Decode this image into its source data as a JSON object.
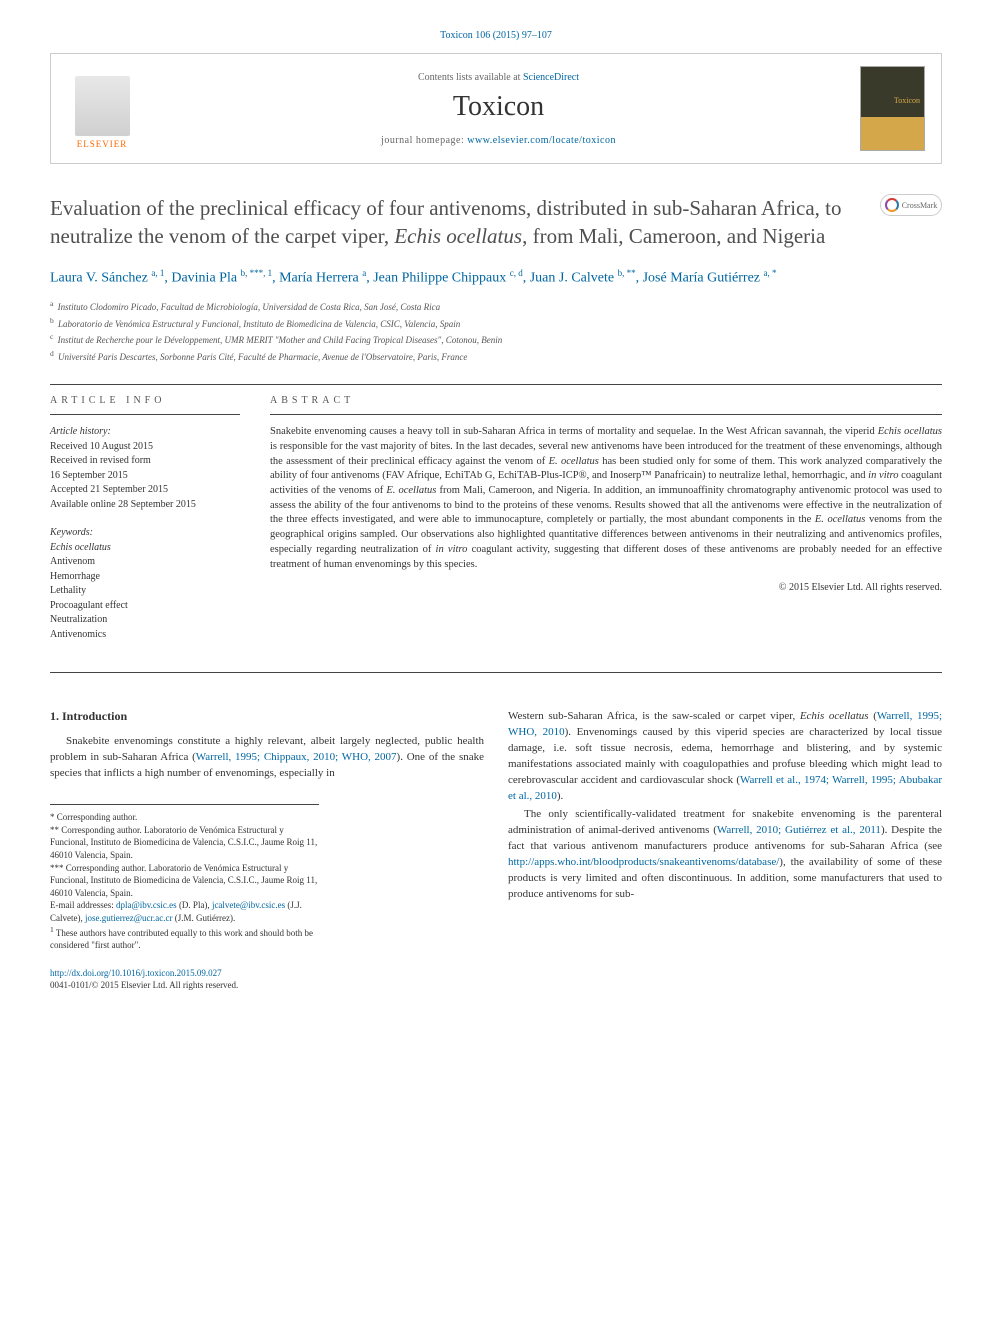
{
  "citation": "Toxicon 106 (2015) 97–107",
  "header": {
    "contents_prefix": "Contents lists available at ",
    "contents_link": "ScienceDirect",
    "journal": "Toxicon",
    "homepage_prefix": "journal homepage: ",
    "homepage_link": "www.elsevier.com/locate/toxicon",
    "elsevier": "ELSEVIER",
    "cover_label": "Toxicon",
    "crossmark": "CrossMark"
  },
  "title_prefix": "Evaluation of the preclinical efficacy of four antivenoms, distributed in sub-Saharan Africa, to neutralize the venom of the carpet viper, ",
  "title_species": "Echis ocellatus",
  "title_suffix": ", from Mali, Cameroon, and Nigeria",
  "authors_html": "Laura V. Sánchez <sup>a, 1</sup>, Davinia Pla <sup>b, ***, 1</sup>, María Herrera <sup>a</sup>, Jean Philippe Chippaux <sup>c, d</sup>, Juan J. Calvete <sup>b, **</sup>, José María Gutiérrez <sup>a, *</sup>",
  "affiliations": [
    {
      "sup": "a",
      "text": "Instituto Clodomiro Picado, Facultad de Microbiología, Universidad de Costa Rica, San José, Costa Rica"
    },
    {
      "sup": "b",
      "text": "Laboratorio de Venómica Estructural y Funcional, Instituto de Biomedicina de Valencia, CSIC, Valencia, Spain"
    },
    {
      "sup": "c",
      "text": "Institut de Recherche pour le Développement, UMR MERIT \"Mother and Child Facing Tropical Diseases\", Cotonou, Benin"
    },
    {
      "sup": "d",
      "text": "Université Paris Descartes, Sorbonne Paris Cité, Faculté de Pharmacie, Avenue de l'Observatoire, Paris, France"
    }
  ],
  "article_info_label": "ARTICLE INFO",
  "abstract_label": "ABSTRACT",
  "history": {
    "label": "Article history:",
    "lines": [
      "Received 10 August 2015",
      "Received in revised form",
      "16 September 2015",
      "Accepted 21 September 2015",
      "Available online 28 September 2015"
    ]
  },
  "keywords": {
    "label": "Keywords:",
    "items": [
      "Echis ocellatus",
      "Antivenom",
      "Hemorrhage",
      "Lethality",
      "Procoagulant effect",
      "Neutralization",
      "Antivenomics"
    ]
  },
  "abstract": "Snakebite envenoming causes a heavy toll in sub-Saharan Africa in terms of mortality and sequelae. In the West African savannah, the viperid <span class=\"em\">Echis ocellatus</span> is responsible for the vast majority of bites. In the last decades, several new antivenoms have been introduced for the treatment of these envenomings, although the assessment of their preclinical efficacy against the venom of <span class=\"em\">E. ocellatus</span> has been studied only for some of them. This work analyzed comparatively the ability of four antivenoms (FAV Afrique, EchiTAb G, EchiTAB-Plus-ICP®, and Inoserp™ Panafricain) to neutralize lethal, hemorrhagic, and <span class=\"em\">in vitro</span> coagulant activities of the venoms of <span class=\"em\">E. ocellatus</span> from Mali, Cameroon, and Nigeria. In addition, an immunoaffinity chromatography antivenomic protocol was used to assess the ability of the four antivenoms to bind to the proteins of these venoms. Results showed that all the antivenoms were effective in the neutralization of the three effects investigated, and were able to immunocapture, completely or partially, the most abundant components in the <span class=\"em\">E. ocellatus</span> venoms from the geographical origins sampled. Our observations also highlighted quantitative differences between antivenoms in their neutralizing and antivenomics profiles, especially regarding neutralization of <span class=\"em\">in vitro</span> coagulant activity, suggesting that different doses of these antivenoms are probably needed for an effective treatment of human envenomings by this species.",
  "copyright": "© 2015 Elsevier Ltd. All rights reserved.",
  "intro_heading": "1. Introduction",
  "intro_left": "Snakebite envenomings constitute a highly relevant, albeit largely neglected, public health problem in sub-Saharan Africa (<a>Warrell, 1995; Chippaux, 2010; WHO, 2007</a>). One of the snake species that inflicts a high number of envenomings, especially in",
  "intro_right_p1": "Western sub-Saharan Africa, is the saw-scaled or carpet viper, <span class=\"em\">Echis ocellatus</span> (<a>Warrell, 1995; WHO, 2010</a>). Envenomings caused by this viperid species are characterized by local tissue damage, i.e. soft tissue necrosis, edema, hemorrhage and blistering, and by systemic manifestations associated mainly with coagulopathies and profuse bleeding which might lead to cerebrovascular accident and cardiovascular shock (<a>Warrell et al., 1974; Warrell, 1995; Abubakar et al., 2010</a>).",
  "intro_right_p2": "The only scientifically-validated treatment for snakebite envenoming is the parenteral administration of animal-derived antivenoms (<a>Warrell, 2010; Gutiérrez et al., 2011</a>). Despite the fact that various antivenom manufacturers produce antivenoms for sub-Saharan Africa (see <a>http://apps.who.int/bloodproducts/snakeantivenoms/database/</a>), the availability of some of these products is very limited and often discontinuous. In addition, some manufacturers that used to produce antivenoms for sub-",
  "footnotes": [
    "* Corresponding author.",
    "** Corresponding author. Laboratorio de Venómica Estructural y Funcional, Instituto de Biomedicina de Valencia, C.S.I.C., Jaume Roig 11, 46010 Valencia, Spain.",
    "*** Corresponding author. Laboratorio de Venómica Estructural y Funcional, Instituto de Biomedicina de Valencia, C.S.I.C., Jaume Roig 11, 46010 Valencia, Spain.",
    "<span class=\"em\">E-mail addresses:</span> <a>dpla@ibv.csic.es</a> (D. Pla), <a>jcalvete@ibv.csic.es</a> (J.J. Calvete), <a>jose.gutierrez@ucr.ac.cr</a> (J.M. Gutiérrez).",
    "<sup>1</sup> These authors have contributed equally to this work and should both be considered \"first author\"."
  ],
  "doi": "http://dx.doi.org/10.1016/j.toxicon.2015.09.027",
  "issn_line": "0041-0101/© 2015 Elsevier Ltd. All rights reserved.",
  "colors": {
    "link": "#0066a1",
    "elsevier_orange": "#ff6600",
    "text": "#333333",
    "rule": "#444444"
  }
}
